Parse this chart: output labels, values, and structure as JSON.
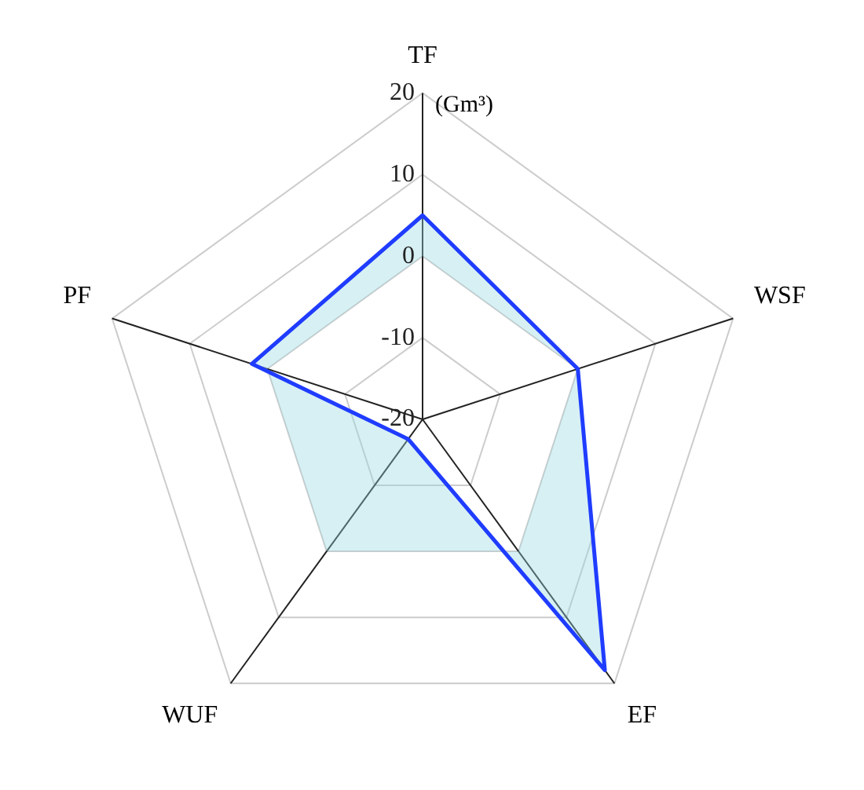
{
  "chart_data": {
    "type": "radar",
    "ylabel": "(Gm³)",
    "categories": [
      "TF",
      "WSF",
      "EF",
      "WUF",
      "PF"
    ],
    "series": [
      {
        "color": "#1f3cff",
        "values": [
          5,
          0,
          18,
          -17,
          2
        ]
      }
    ],
    "ylim": [
      -20,
      20
    ],
    "yticks": [
      -20,
      -10,
      0,
      10,
      20
    ],
    "grid": true,
    "legend": false,
    "marker": "none"
  }
}
